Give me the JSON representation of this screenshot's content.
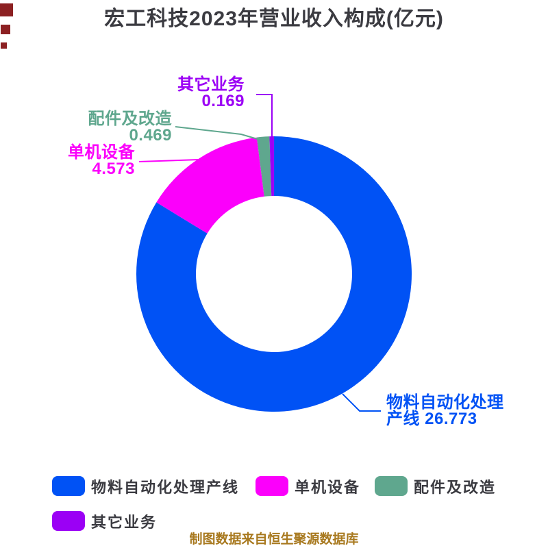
{
  "title": "宏工科技2023年营业收入构成(亿元)",
  "footer_note": "制图数据来自恒生聚源数据库",
  "colors": {
    "background": "#ffffff",
    "title_text": "#3b3b41",
    "legend_text": "#3b3b41",
    "footer_text": "#a8791f",
    "artifact_red": "#8c2022",
    "blue": "#0052f5",
    "magenta": "#fb00fb",
    "teal": "#5fa78e",
    "purple": "#9b00f5"
  },
  "chart_data": {
    "type": "pie",
    "donut": true,
    "title": "宏工科技2023年营业收入构成(亿元)",
    "unit": "亿元",
    "start_angle_deg": 0,
    "direction": "clockwise",
    "total": 31.984,
    "series": [
      {
        "name": "物料自动化处理产线",
        "value": 26.773,
        "color": "#0052f5"
      },
      {
        "name": "单机设备",
        "value": 4.573,
        "color": "#fb00fb"
      },
      {
        "name": "配件及改造",
        "value": 0.469,
        "color": "#5fa78e"
      },
      {
        "name": "其它业务",
        "value": 0.169,
        "color": "#9b00f5"
      }
    ],
    "legend_position": "bottom-left"
  },
  "callouts": [
    {
      "line1": "物料自动化处理",
      "line2": "产线 26.773"
    },
    {
      "line1": "单机设备",
      "line2": "4.573"
    },
    {
      "line1": "配件及改造",
      "line2": "0.469"
    },
    {
      "line1": "其它业务",
      "line2": "0.169"
    }
  ],
  "legend": {
    "items": [
      {
        "label": "物料自动化处理产线",
        "color": "#0052f5"
      },
      {
        "label": "单机设备",
        "color": "#fb00fb"
      },
      {
        "label": "配件及改造",
        "color": "#5fa78e"
      },
      {
        "label": "其它业务",
        "color": "#9b00f5"
      }
    ]
  }
}
